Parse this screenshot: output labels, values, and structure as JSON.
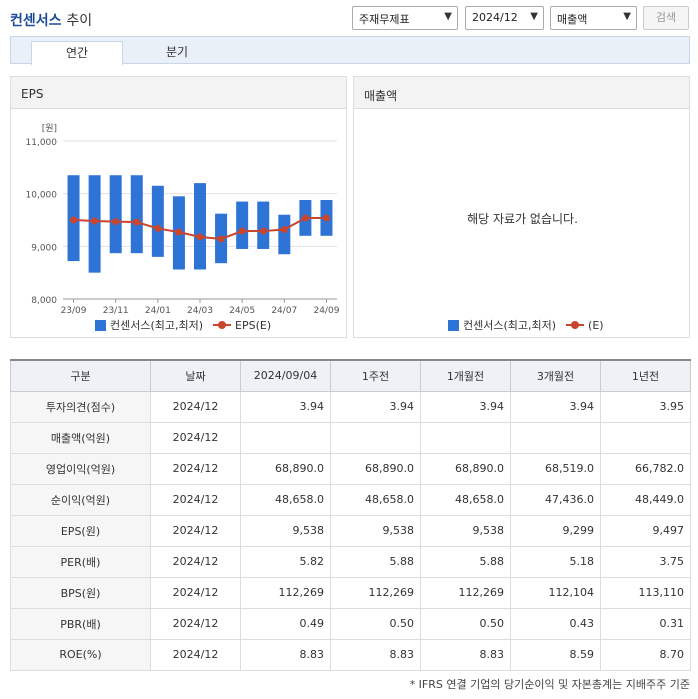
{
  "header": {
    "title": "컨센서스",
    "subtitle": "추이",
    "select_type": "주재무제표",
    "select_period": "2024/12",
    "select_metric": "매출액",
    "search_label": "검색"
  },
  "tabs": [
    {
      "label": "연간",
      "active": true
    },
    {
      "label": "분기",
      "active": false
    }
  ],
  "eps_panel": {
    "title": "EPS",
    "legend_bar": "컨센서스(최고,최저)",
    "legend_line": "EPS(E)"
  },
  "sales_panel": {
    "title": "매출액",
    "no_data": "해당 자료가 없습니다.",
    "legend_bar": "컨센서스(최고,최저)",
    "legend_line": "(E)"
  },
  "chart_data": {
    "type": "bar",
    "unit_label": "[원]",
    "ylim": [
      8000,
      11000
    ],
    "yticks": [
      "11,000",
      "10,000",
      "9,000",
      "8,000"
    ],
    "xtick_labels": [
      "23/09",
      "23/11",
      "24/01",
      "24/03",
      "24/05",
      "24/07",
      "24/09"
    ],
    "series": [
      {
        "name": "컨센서스(최고,최저)",
        "kind": "range",
        "low": [
          8720,
          8500,
          8870,
          8870,
          8800,
          8560,
          8560,
          8680,
          8950,
          8950,
          8850,
          9200,
          9200
        ],
        "high": [
          10350,
          10350,
          10350,
          10350,
          10150,
          9950,
          10200,
          9620,
          9850,
          9850,
          9600,
          9880,
          9880
        ]
      },
      {
        "name": "EPS(E)",
        "kind": "line",
        "values": [
          9500,
          9480,
          9470,
          9460,
          9340,
          9270,
          9180,
          9140,
          9290,
          9290,
          9320,
          9538,
          9538
        ]
      }
    ],
    "colors": {
      "bar": "#2e74d6",
      "line": "#c9452e"
    }
  },
  "table": {
    "headers": [
      "구분",
      "날짜",
      "2024/09/04",
      "1주전",
      "1개월전",
      "3개월전",
      "1년전"
    ],
    "rows": [
      {
        "label": "투자의견(점수)",
        "date": "2024/12",
        "values": [
          "3.94",
          "3.94",
          "3.94",
          "3.94",
          "3.95"
        ]
      },
      {
        "label": "매출액(억원)",
        "date": "2024/12",
        "values": [
          "",
          "",
          "",
          "",
          ""
        ]
      },
      {
        "label": "영업이익(억원)",
        "date": "2024/12",
        "values": [
          "68,890.0",
          "68,890.0",
          "68,890.0",
          "68,519.0",
          "66,782.0"
        ]
      },
      {
        "label": "순이익(억원)",
        "date": "2024/12",
        "values": [
          "48,658.0",
          "48,658.0",
          "48,658.0",
          "47,436.0",
          "48,449.0"
        ]
      },
      {
        "label": "EPS(원)",
        "date": "2024/12",
        "values": [
          "9,538",
          "9,538",
          "9,538",
          "9,299",
          "9,497"
        ]
      },
      {
        "label": "PER(배)",
        "date": "2024/12",
        "values": [
          "5.82",
          "5.88",
          "5.88",
          "5.18",
          "3.75"
        ]
      },
      {
        "label": "BPS(원)",
        "date": "2024/12",
        "values": [
          "112,269",
          "112,269",
          "112,269",
          "112,104",
          "113,110"
        ]
      },
      {
        "label": "PBR(배)",
        "date": "2024/12",
        "values": [
          "0.49",
          "0.50",
          "0.50",
          "0.43",
          "0.31"
        ]
      },
      {
        "label": "ROE(%)",
        "date": "2024/12",
        "values": [
          "8.83",
          "8.83",
          "8.83",
          "8.59",
          "8.70"
        ]
      }
    ]
  },
  "footnote": "* IFRS 연결 기업의 당기순이익 및 자본총계는 지배주주 기준"
}
